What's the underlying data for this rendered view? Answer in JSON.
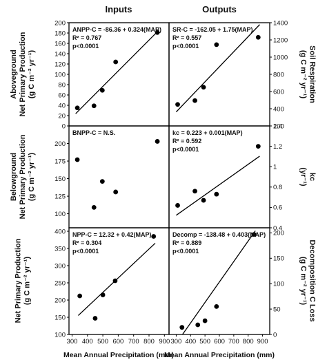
{
  "figure": {
    "column_titles": [
      "Inputs",
      "Outputs"
    ],
    "xlabel": "Mean Annual Precipitation (mm)"
  },
  "chart_data": [
    {
      "id": "anpp",
      "type": "scatter",
      "ylabel_lines": [
        "Aboveground",
        "Net Primary Production",
        "(g C m⁻² yr⁻¹)"
      ],
      "xlim": [
        300,
        900
      ],
      "ylim": [
        0,
        200
      ],
      "xticks": [],
      "yticks": [
        0,
        20,
        40,
        60,
        80,
        100,
        120,
        140,
        160,
        180,
        200
      ],
      "x": [
        350,
        450,
        500,
        580,
        830
      ],
      "y": [
        35,
        39,
        69,
        124,
        181
      ],
      "fit": {
        "slope": 0.324,
        "intercept": -86.36
      },
      "annotations": [
        "ANPP-C = -86.36 + 0.324(MAP)",
        "R² = 0.767",
        "p<0.0001"
      ]
    },
    {
      "id": "sr",
      "type": "scatter",
      "ylabel_lines": [
        "Soil Respiration",
        "(g C m⁻² yr⁻¹)"
      ],
      "xlim": [
        250,
        950
      ],
      "ylim": [
        200,
        1400
      ],
      "xticks": [],
      "yticks": [
        200,
        400,
        600,
        800,
        1000,
        1200,
        1400
      ],
      "x": [
        310,
        430,
        490,
        580,
        870
      ],
      "y": [
        450,
        495,
        650,
        1145,
        1230
      ],
      "fit": {
        "slope": 1.75,
        "intercept": -162.05
      },
      "annotations": [
        "SR-C = -162.05 + 1.75(MAP)",
        "R² = 0.557",
        "p<0.0001"
      ]
    },
    {
      "id": "bnpp",
      "type": "scatter",
      "ylabel_lines": [
        "Belowground",
        "Net Primary Production",
        "(g C m⁻² yr⁻¹)"
      ],
      "xlim": [
        300,
        900
      ],
      "ylim": [
        80,
        225
      ],
      "xticks": [],
      "yticks": [
        100,
        125,
        150,
        175,
        200
      ],
      "x": [
        350,
        450,
        500,
        580,
        830
      ],
      "y": [
        177,
        109,
        146,
        131,
        203
      ],
      "fit": null,
      "annotations": [
        "BNPP-C = N.S."
      ]
    },
    {
      "id": "kc",
      "type": "scatter",
      "ylabel_lines": [
        "kᴄ",
        "(yr⁻¹)"
      ],
      "xlim": [
        250,
        950
      ],
      "ylim": [
        0.4,
        1.4
      ],
      "xticks": [],
      "yticks": [
        0.4,
        0.6,
        0.8,
        1.0,
        1.2,
        1.4
      ],
      "ytick_labels": [
        "0.4",
        "0.6",
        "0.8",
        "1",
        "1.2",
        "1.4"
      ],
      "x": [
        310,
        430,
        490,
        580,
        870
      ],
      "y": [
        0.62,
        0.76,
        0.67,
        0.73,
        1.2
      ],
      "fit": {
        "slope": 0.001,
        "intercept": 0.223
      },
      "annotations": [
        "kᴄ = 0.223 + 0.001(MAP)",
        "R² = 0.592",
        "p<0.0001"
      ]
    },
    {
      "id": "npp",
      "type": "scatter",
      "ylabel_lines": [
        "Net Primary Production",
        "(g C m⁻² yr⁻¹)"
      ],
      "xlim": [
        280,
        930
      ],
      "ylim": [
        100,
        410
      ],
      "xticks": [
        300,
        400,
        500,
        600,
        700,
        800,
        900
      ],
      "yticks": [
        100,
        150,
        200,
        250,
        300,
        350,
        400
      ],
      "x": [
        350,
        450,
        500,
        580,
        830
      ],
      "y": [
        212,
        147,
        215,
        256,
        385
      ],
      "fit": {
        "slope": 0.42,
        "intercept": 12.32
      },
      "annotations": [
        "NPP-C = 12.32 + 0.42(MAP)",
        "R² = 0.304",
        "p<0.0001"
      ]
    },
    {
      "id": "decomp",
      "type": "scatter",
      "ylabel_lines": [
        "Decomposition C Loss",
        "(g C m⁻² yr⁻¹)"
      ],
      "xlim": [
        250,
        950
      ],
      "ylim": [
        0,
        210
      ],
      "xticks": [
        300,
        400,
        500,
        600,
        700,
        800,
        900
      ],
      "yticks": [
        0,
        50,
        100,
        150,
        200
      ],
      "x": [
        340,
        450,
        500,
        580,
        840
      ],
      "y": [
        14,
        19,
        27,
        55,
        197
      ],
      "fit": {
        "slope": 0.403,
        "intercept": -138.48
      },
      "annotations": [
        "Decomp = -138.48 + 0.403(MAP)",
        "R² = 0.889",
        "p<0.0001"
      ]
    }
  ]
}
